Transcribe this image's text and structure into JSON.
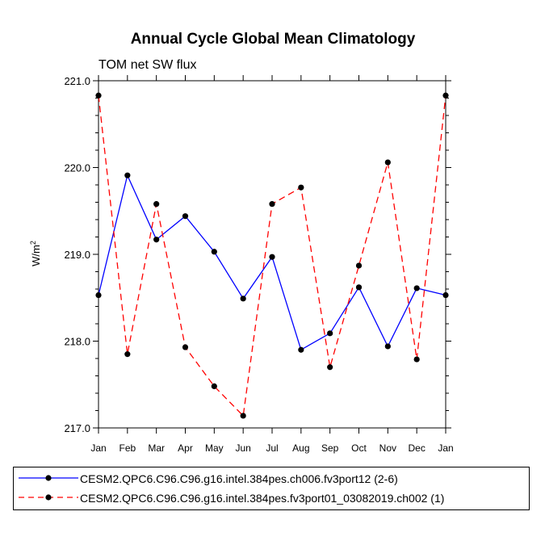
{
  "chart_data": {
    "type": "line",
    "title": "Annual Cycle Global Mean Climatology",
    "subtitle": "TOM net SW flux",
    "ylabel": "W/m",
    "ylabel_superscript": "2",
    "xlabel": "",
    "categories": [
      "Jan",
      "Feb",
      "Mar",
      "Apr",
      "May",
      "Jun",
      "Jul",
      "Aug",
      "Sep",
      "Oct",
      "Nov",
      "Dec",
      "Jan"
    ],
    "ylim": [
      217.0,
      221.0
    ],
    "yticks": [
      "217.0",
      "218.0",
      "219.0",
      "220.0",
      "221.0"
    ],
    "series": [
      {
        "name": "CESM2.QPC6.C96.C96.g16.intel.384pes.ch006.fv3port12 (2-6)",
        "color": "#0000ff",
        "style": "solid",
        "values": [
          218.53,
          219.91,
          219.17,
          219.44,
          219.03,
          218.49,
          218.97,
          217.9,
          218.09,
          218.62,
          217.94,
          218.61,
          218.53
        ]
      },
      {
        "name": "CESM2.QPC6.C96.C96.g16.intel.384pes.fv3port01_03082019.ch002 (1)",
        "color": "#ff0000",
        "style": "dashed",
        "values": [
          220.83,
          217.85,
          219.58,
          217.93,
          217.48,
          217.14,
          219.58,
          219.77,
          217.7,
          218.87,
          220.06,
          217.79,
          220.83
        ]
      }
    ],
    "legend_position": "bottom"
  }
}
